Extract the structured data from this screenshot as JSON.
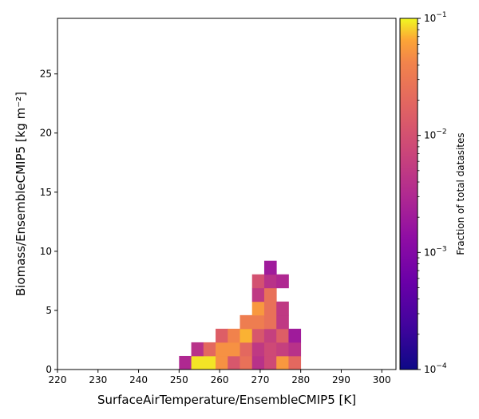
{
  "chart_data": {
    "type": "heatmap",
    "xlabel": "SurfaceAirTemperature/EnsembleCMIP5 [K]",
    "ylabel": "Biomass/EnsembleCMIP5 [kg m⁻²]",
    "xlim": [
      220,
      303.5
    ],
    "ylim": [
      0,
      29.7
    ],
    "xticks": [
      220,
      230,
      240,
      250,
      260,
      270,
      280,
      290,
      300
    ],
    "yticks": [
      0,
      5,
      10,
      15,
      20,
      25
    ],
    "bin_width_x": 3.0,
    "bin_height_y": 1.15,
    "colorbar": {
      "label": "Fraction of total datasites",
      "scale": "log",
      "range": [
        0.0001,
        0.1
      ],
      "tick_labels": [
        {
          "base": "10",
          "exp": "−1"
        },
        {
          "base": "10",
          "exp": "−2"
        },
        {
          "base": "10",
          "exp": "−3"
        },
        {
          "base": "10",
          "exp": "−4"
        }
      ],
      "colormap": "plasma"
    },
    "cells": [
      {
        "x": 250,
        "y": 0,
        "v": 0.003
      },
      {
        "x": 253,
        "y": 0,
        "v": 0.09
      },
      {
        "x": 256,
        "y": 0,
        "v": 0.09
      },
      {
        "x": 259,
        "y": 0,
        "v": 0.05
      },
      {
        "x": 262,
        "y": 0,
        "v": 0.012
      },
      {
        "x": 265,
        "y": 0,
        "v": 0.025
      },
      {
        "x": 268,
        "y": 0,
        "v": 0.004
      },
      {
        "x": 271,
        "y": 0,
        "v": 0.008
      },
      {
        "x": 274,
        "y": 0,
        "v": 0.055
      },
      {
        "x": 277,
        "y": 0,
        "v": 0.02
      },
      {
        "x": 253,
        "y": 1.15,
        "v": 0.004
      },
      {
        "x": 256,
        "y": 1.15,
        "v": 0.02
      },
      {
        "x": 259,
        "y": 1.15,
        "v": 0.05
      },
      {
        "x": 262,
        "y": 1.15,
        "v": 0.05
      },
      {
        "x": 265,
        "y": 1.15,
        "v": 0.02
      },
      {
        "x": 268,
        "y": 1.15,
        "v": 0.005
      },
      {
        "x": 271,
        "y": 1.15,
        "v": 0.008
      },
      {
        "x": 274,
        "y": 1.15,
        "v": 0.006
      },
      {
        "x": 277,
        "y": 1.15,
        "v": 0.004
      },
      {
        "x": 259,
        "y": 2.3,
        "v": 0.015
      },
      {
        "x": 262,
        "y": 2.3,
        "v": 0.04
      },
      {
        "x": 265,
        "y": 2.3,
        "v": 0.07
      },
      {
        "x": 268,
        "y": 2.3,
        "v": 0.012
      },
      {
        "x": 271,
        "y": 2.3,
        "v": 0.006
      },
      {
        "x": 274,
        "y": 2.3,
        "v": 0.015
      },
      {
        "x": 277,
        "y": 2.3,
        "v": 0.002
      },
      {
        "x": 265,
        "y": 3.45,
        "v": 0.035
      },
      {
        "x": 268,
        "y": 3.45,
        "v": 0.035
      },
      {
        "x": 271,
        "y": 3.45,
        "v": 0.025
      },
      {
        "x": 274,
        "y": 3.45,
        "v": 0.005
      },
      {
        "x": 268,
        "y": 4.6,
        "v": 0.055
      },
      {
        "x": 271,
        "y": 4.6,
        "v": 0.025
      },
      {
        "x": 274,
        "y": 4.6,
        "v": 0.005
      },
      {
        "x": 268,
        "y": 5.75,
        "v": 0.005
      },
      {
        "x": 271,
        "y": 5.75,
        "v": 0.025
      },
      {
        "x": 268,
        "y": 6.9,
        "v": 0.01
      },
      {
        "x": 271,
        "y": 6.9,
        "v": 0.004
      },
      {
        "x": 274,
        "y": 6.9,
        "v": 0.003
      },
      {
        "x": 271,
        "y": 8.05,
        "v": 0.002
      }
    ]
  }
}
